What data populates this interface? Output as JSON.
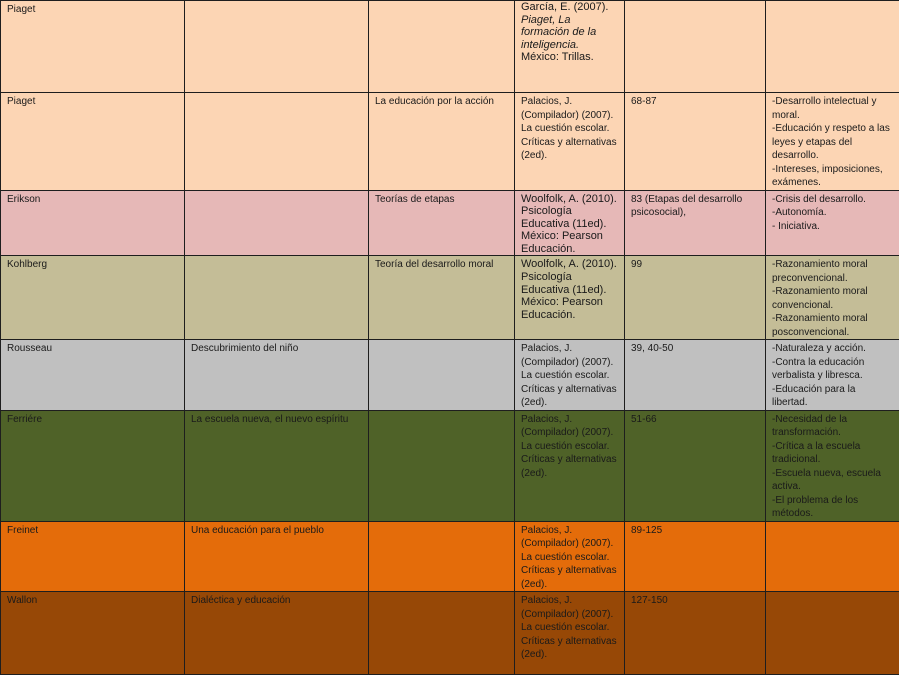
{
  "colors": {
    "peach": "#fcd5b4",
    "pink": "#e6b8b7",
    "khaki": "#c4bd97",
    "gray": "#c0c0c0",
    "olive": "#4f6228",
    "orange": "#e46c0a",
    "brown": "#974806",
    "border": "#1e1e1e"
  },
  "rows": [
    {
      "author": "Piaget",
      "topic": "",
      "theory": "",
      "reference": [
        "García, E. (2007).",
        "Piaget, La formación de la inteligencia.",
        "México: Trillas."
      ],
      "pages": "",
      "notes": ""
    },
    {
      "author": "Piaget",
      "topic": "",
      "theory": "La educación por la acción",
      "reference": [
        "Palacios, J. (Compilador) (2007). La cuestión escolar. Críticas y alternativas (2ed)."
      ],
      "pages": "68-87",
      "notes": [
        "-Desarrollo intelectual y moral.",
        "-Educación y respeto a las leyes y etapas del desarrollo.",
        "-Intereses, imposiciones, exámenes."
      ]
    },
    {
      "author": "Erikson",
      "topic": "",
      "theory": "Teorías de etapas",
      "reference": [
        "Woolfolk, A. (2010). Psicología Educativa (11ed). México: Pearson Educación."
      ],
      "pages": "83 (Etapas del desarrollo psicosocial),",
      "notes": [
        "-Crisis del desarrollo.",
        "-Autonomía.",
        "- Iniciativa."
      ]
    },
    {
      "author": "Kohlberg",
      "topic": "",
      "theory": "Teoría del desarrollo moral",
      "reference": [
        "Woolfolk, A. (2010). Psicología Educativa (11ed). México: Pearson Educación."
      ],
      "pages": "99",
      "notes": [
        "-Razonamiento moral preconvencional.",
        "-Razonamiento moral convencional.",
        "-Razonamiento moral posconvencional."
      ]
    },
    {
      "author": "Rousseau",
      "topic": "Descubrimiento del niño",
      "theory": "",
      "reference": [
        "Palacios, J. (Compilador) (2007). La cuestión escolar. Críticas y alternativas (2ed)."
      ],
      "pages": "39, 40-50",
      "notes": [
        "-Naturaleza y acción.",
        "-Contra la educación verbalista y libresca.",
        "-Educación para la libertad."
      ]
    },
    {
      "author": "Ferriére",
      "topic": "La escuela nueva, el nuevo espíritu",
      "theory": "",
      "reference": [
        "Palacios, J. (Compilador) (2007). La cuestión escolar. Críticas y alternativas (2ed)."
      ],
      "pages": "51-66",
      "notes": [
        "-Necesidad de la transformación.",
        "-Crítica a la escuela tradicional.",
        "-Escuela nueva, escuela activa.",
        "-El problema de los métodos."
      ]
    },
    {
      "author": "Freinet",
      "topic": "Una educación para el pueblo",
      "theory": "",
      "reference": [
        "Palacios, J. (Compilador) (2007). La cuestión escolar. Críticas y alternativas (2ed)."
      ],
      "pages": "89-125",
      "notes": ""
    },
    {
      "author": "Wallon",
      "topic": "Dialéctica y educación",
      "theory": "",
      "reference": [
        "Palacios, J. (Compilador) (2007). La cuestión escolar. Críticas y alternativas (2ed)."
      ],
      "pages": "127-150",
      "notes": ""
    }
  ]
}
